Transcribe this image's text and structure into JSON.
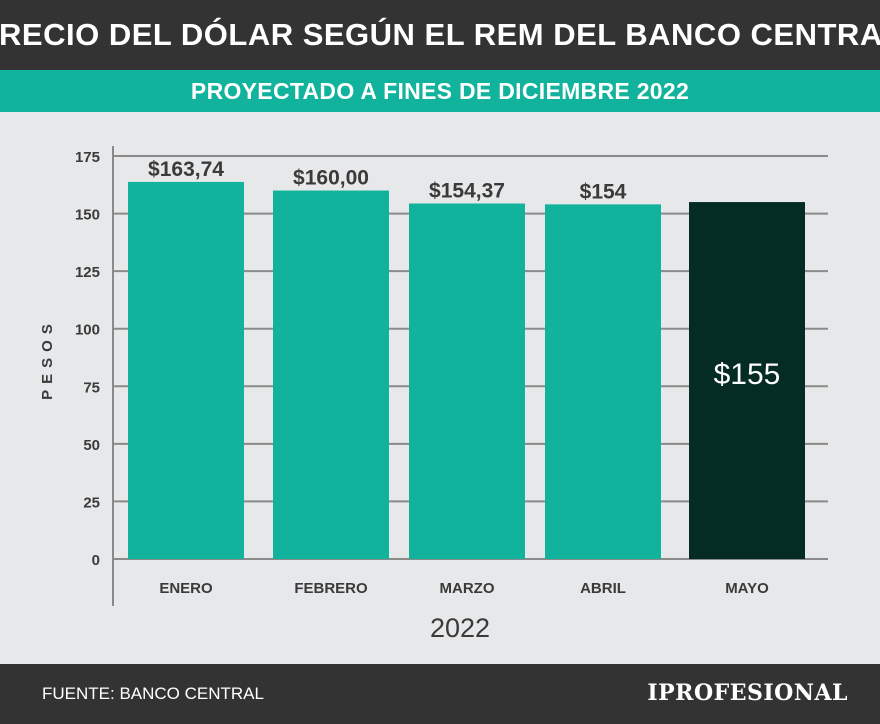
{
  "header": {
    "title": "PRECIO DEL DÓLAR SEGÚN EL REM DEL BANCO CENTRAL",
    "subtitle": "PROYECTADO A FINES DE DICIEMBRE 2022"
  },
  "chart_data": {
    "type": "bar",
    "categories": [
      "ENERO",
      "FEBRERO",
      "MARZO",
      "ABRIL",
      "MAYO"
    ],
    "values": [
      163.74,
      160.0,
      154.37,
      154,
      155
    ],
    "data_labels": [
      "$163,74",
      "$160,00",
      "$154,37",
      "$154",
      "$155"
    ],
    "bar_colors": [
      "#11b39d",
      "#11b39d",
      "#11b39d",
      "#11b39d",
      "#052b25"
    ],
    "ylabel": "P E S O S",
    "xlabel": "2022",
    "ylim": [
      0,
      175
    ],
    "yticks": [
      0,
      25,
      50,
      75,
      100,
      125,
      150,
      175
    ],
    "grid": true
  },
  "footer": {
    "source": "FUENTE: BANCO CENTRAL",
    "brand": "IPROFESIONAL"
  },
  "colors": {
    "header_bg": "#333334",
    "accent": "#11b39d",
    "highlight_bar": "#052b25",
    "plot_bg": "#e7e8e9",
    "grid": "#8a8a8a"
  }
}
